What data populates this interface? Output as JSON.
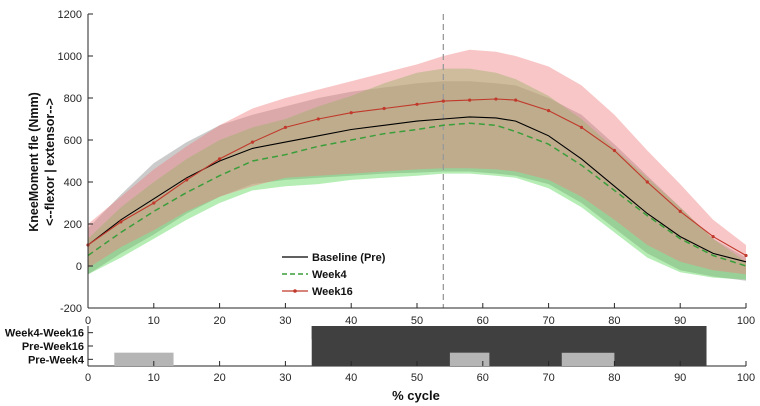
{
  "chart_data": {
    "type": "line",
    "ylabel_lines": [
      "KneeMoment fle (Nmm)",
      "<--flexor | extensor-->"
    ],
    "xlabel": "% cycle",
    "xlim": [
      0,
      100
    ],
    "ylim": [
      -200,
      1200
    ],
    "xticks": [
      0,
      10,
      20,
      30,
      40,
      50,
      60,
      70,
      80,
      90,
      100
    ],
    "yticks": [
      -200,
      0,
      200,
      400,
      600,
      800,
      1000,
      1200
    ],
    "vline_x": 54,
    "x": [
      0,
      5,
      10,
      15,
      20,
      25,
      30,
      35,
      40,
      45,
      50,
      54,
      58,
      62,
      65,
      70,
      75,
      80,
      85,
      90,
      95,
      100
    ],
    "series": [
      {
        "name": "Baseline (Pre)",
        "color": "#000000",
        "band_color": "#8c8c8c",
        "line_style": "solid",
        "mean": [
          100,
          220,
          320,
          420,
          500,
          560,
          590,
          620,
          650,
          670,
          690,
          700,
          710,
          705,
          690,
          620,
          510,
          380,
          250,
          140,
          60,
          20
        ],
        "lower": [
          -40,
          60,
          150,
          250,
          330,
          390,
          410,
          420,
          430,
          440,
          445,
          450,
          450,
          440,
          430,
          390,
          300,
          180,
          60,
          -20,
          -50,
          -70
        ],
        "upper": [
          180,
          340,
          490,
          590,
          670,
          720,
          760,
          800,
          830,
          850,
          870,
          880,
          880,
          870,
          860,
          800,
          720,
          580,
          430,
          280,
          130,
          40
        ]
      },
      {
        "name": "Week4",
        "color": "#3a9e3a",
        "band_color": "#5cd65c",
        "line_style": "dashed",
        "mean": [
          50,
          160,
          260,
          350,
          430,
          500,
          530,
          570,
          600,
          630,
          650,
          670,
          680,
          670,
          640,
          580,
          480,
          360,
          240,
          130,
          50,
          0
        ],
        "lower": [
          -40,
          40,
          130,
          220,
          300,
          360,
          380,
          390,
          410,
          420,
          430,
          440,
          440,
          430,
          420,
          370,
          280,
          160,
          40,
          -30,
          -55,
          -65
        ],
        "upper": [
          130,
          280,
          400,
          510,
          600,
          660,
          700,
          760,
          810,
          870,
          920,
          940,
          940,
          920,
          890,
          810,
          700,
          560,
          420,
          280,
          130,
          20
        ]
      },
      {
        "name": "Week16",
        "color": "#c0392b",
        "band_color": "#f08080",
        "line_style": "solid-dots",
        "mean": [
          100,
          210,
          300,
          410,
          510,
          590,
          660,
          700,
          730,
          750,
          770,
          785,
          790,
          795,
          790,
          740,
          660,
          550,
          400,
          260,
          140,
          50
        ],
        "lower": [
          -10,
          90,
          170,
          260,
          330,
          380,
          420,
          430,
          440,
          450,
          460,
          465,
          465,
          460,
          450,
          410,
          330,
          220,
          100,
          20,
          -20,
          -40
        ],
        "upper": [
          200,
          330,
          460,
          570,
          670,
          750,
          800,
          840,
          880,
          920,
          960,
          1000,
          1030,
          1020,
          1000,
          950,
          860,
          720,
          550,
          390,
          220,
          100
        ]
      }
    ],
    "significance": {
      "rows": [
        "Week4-Week16",
        "Pre-Week16",
        "Pre-Week4"
      ],
      "bars": [
        {
          "row": "Week4-Week16",
          "start": 34,
          "end": 94,
          "color": "#404040"
        },
        {
          "row": "Pre-Week16",
          "start": 72,
          "end": 82,
          "color": "#404040"
        },
        {
          "row": "Pre-Week4",
          "start": 4,
          "end": 13,
          "color": "#b5b5b5"
        },
        {
          "row": "Pre-Week4",
          "start": 55,
          "end": 61,
          "color": "#b5b5b5"
        },
        {
          "row": "Pre-Week4",
          "start": 72,
          "end": 80,
          "color": "#b5b5b5"
        }
      ]
    },
    "legend": {
      "position": "lower-center",
      "entries": [
        "Baseline (Pre)",
        "Week4",
        "Week16"
      ]
    }
  }
}
